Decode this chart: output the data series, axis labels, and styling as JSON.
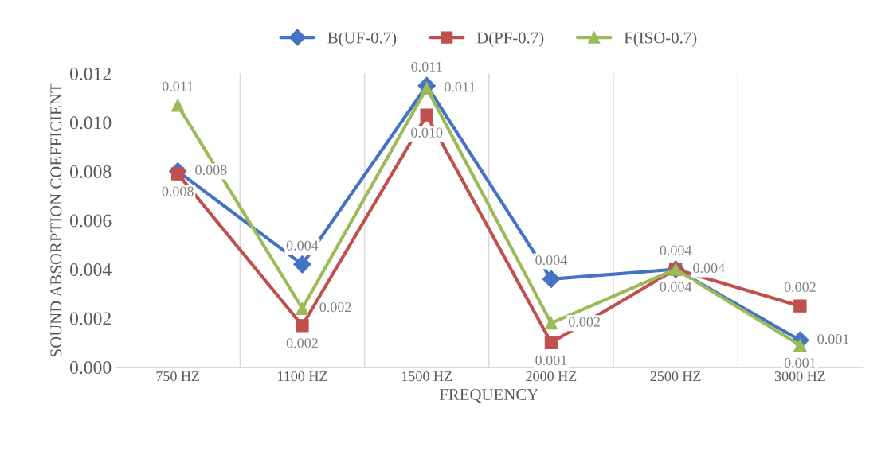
{
  "chart_data": {
    "type": "line",
    "xlabel": "FREQUENCY",
    "ylabel": "SOUND ABSORPTION COEFFICIENT",
    "categories": [
      "750 HZ",
      "1100 HZ",
      "1500 HZ",
      "2000 HZ",
      "2500 HZ",
      "3000 HZ"
    ],
    "series": [
      {
        "name": "B(UF-0.7)",
        "color": "#4472c4",
        "marker": "diamond",
        "values": [
          0.008,
          0.0042,
          0.0115,
          0.0036,
          0.004,
          0.0011
        ],
        "value_labels": [
          "0.008",
          "0.004",
          "0.011",
          "0.004",
          "0.004",
          "0.001"
        ]
      },
      {
        "name": "D(PF-0.7)",
        "color": "#c0504d",
        "marker": "square",
        "values": [
          0.0079,
          0.0017,
          0.0103,
          0.001,
          0.004,
          0.0025
        ],
        "value_labels": [
          "0.008",
          "0.002",
          "0.010",
          "0.001",
          "0.004",
          "0.002"
        ]
      },
      {
        "name": "F(ISO-0.7)",
        "color": "#9bbb59",
        "marker": "triangle",
        "values": [
          0.0107,
          0.0024,
          0.0114,
          0.0018,
          0.004,
          0.0009
        ],
        "value_labels": [
          "0.011",
          "0.002",
          "0.011",
          "0.002",
          "0.004",
          "0.001"
        ]
      }
    ],
    "ylim": [
      0,
      0.012
    ],
    "yticks": [
      {
        "value": 0,
        "label": "0.000"
      },
      {
        "value": 0.002,
        "label": "0.002"
      },
      {
        "value": 0.004,
        "label": "0.004"
      },
      {
        "value": 0.006,
        "label": "0.006"
      },
      {
        "value": 0.008,
        "label": "0.008"
      },
      {
        "value": 0.01,
        "label": "0.010"
      },
      {
        "value": 0.012,
        "label": "0.012"
      }
    ],
    "grid": "x",
    "legend": "top"
  }
}
